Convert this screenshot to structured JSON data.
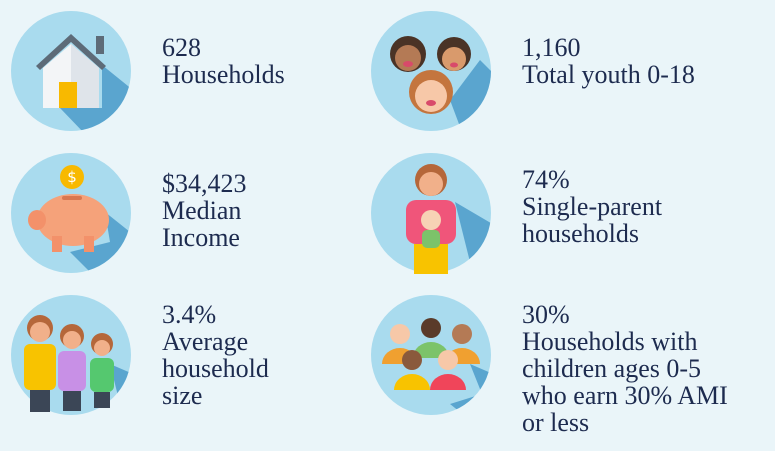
{
  "items": [
    {
      "value": "628",
      "label": [
        "Households"
      ]
    },
    {
      "value": "1,160",
      "label": [
        "Total youth 0-18"
      ]
    },
    {
      "value": "$34,423",
      "label": [
        "Median",
        "Income"
      ]
    },
    {
      "value": "74%",
      "label": [
        "Single-parent",
        "households"
      ]
    },
    {
      "value": "3.4%",
      "label": [
        "Average",
        "household",
        "size"
      ]
    },
    {
      "value": "30%",
      "label": [
        "Households with",
        "children ages 0-5",
        "who earn 30% AMI",
        "or less"
      ]
    }
  ]
}
